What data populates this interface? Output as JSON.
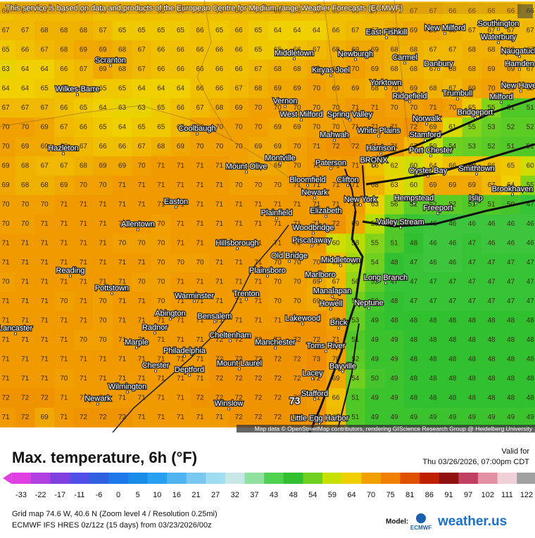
{
  "header_notice": "This service is based on data and products of the European Centre for Medium-range Weather Forecasts (ECMWF)",
  "cities": [
    "East Fishkill",
    "New Milford",
    "Southington",
    "Waterbury",
    "Scranton",
    "Middletown",
    "Newburgh",
    "Carmel",
    "Danbury",
    "Naugatuck",
    "Hamden",
    "Kiryas Joel",
    "Wilkes-Barre",
    "Yorktown",
    "Trumbull",
    "New Haven",
    "Milford",
    "Ridgefield",
    "Vernon",
    "West Milford",
    "Spring Valley",
    "Bridgeport",
    "Norwalk",
    "Stamford",
    "White Plains",
    "Mahwah",
    "Coolbaugh",
    "Hazleton",
    "Harrison",
    "Port Chester",
    "Montville",
    "Paterson",
    "BRONX",
    "Mount Olive",
    "Oyster Bay",
    "Smithtown",
    "Bloomfield",
    "Clifton",
    "Brookhaven",
    "Newark",
    "Easton",
    "New York",
    "Hempstead",
    "Islip",
    "Freeport",
    "Plainfield",
    "Elizabeth",
    "Allentown",
    "Woodbridge",
    "Valley Stream",
    "Piscataway",
    "Hillsborough",
    "Old Bridge",
    "Middletown",
    "Reading",
    "Plainsboro",
    "Marlboro",
    "Long Branch",
    "Pottstown",
    "Manalapan",
    "Trenton",
    "Warminster",
    "Neptune",
    "Howell",
    "Abington",
    "Bensalem",
    "Lakewood",
    "Brick",
    "Lancaster",
    "Radnor",
    "Cheltenham",
    "Marple",
    "Manchester",
    "Toms River",
    "Philadelphia",
    "Mount Laurel",
    "Bayville",
    "Chester",
    "Deptford",
    "Lacey",
    "Wilmington",
    "Stafford",
    "Newark",
    "Winslow",
    "Little Egg Harbor"
  ],
  "max_marker": "73",
  "attribution": "Map data © OpenStreetMap contributors, rendering GIScience Research Group @ Heidelberg University",
  "title": "Max. temperature, 6h (°F)",
  "valid_label": "Valid for",
  "valid_time": "Thu 03/26/2026, 07:00pm CDT",
  "legend": {
    "ticks": [
      -33,
      -22,
      -17,
      -11,
      -6,
      0,
      5,
      10,
      16,
      21,
      27,
      32,
      37,
      43,
      48,
      54,
      59,
      64,
      70,
      75,
      81,
      86,
      91,
      97,
      102,
      111,
      122
    ],
    "colors": [
      "#e040e0",
      "#b040e0",
      "#8040e0",
      "#5050e8",
      "#3060e0",
      "#1e78e8",
      "#1a8ce8",
      "#28a0f0",
      "#50b4f0",
      "#78c8f0",
      "#a0dcf0",
      "#c8e8e8",
      "#90e0a0",
      "#50d050",
      "#30c030",
      "#70d020",
      "#c8e000",
      "#f0d000",
      "#f0a000",
      "#f08000",
      "#e05000",
      "#c02000",
      "#901010",
      "#c04060",
      "#e090a0",
      "#f0d0d8",
      "#a0a0a0"
    ]
  },
  "grid_info": "Grid map 74.6 W, 40.6 N (Zoom level 4 / Resolution 0.25mi)",
  "model_run": "ECMWF IFS HRES 0z/12z (15 days) from  03/23/2026/00z",
  "model_label": "Model:",
  "model_logo": "ECMWF",
  "brand": "weather.us",
  "grid": [
    [
      66,
      67,
      67,
      67,
      67,
      66,
      66,
      66,
      66,
      66,
      66,
      66,
      66,
      66,
      66,
      66,
      66,
      66,
      66,
      67,
      67,
      67,
      67,
      66,
      66,
      66,
      66,
      66
    ],
    [
      67,
      67,
      68,
      68,
      68,
      67,
      65,
      65,
      65,
      65,
      66,
      65,
      66,
      65,
      64,
      64,
      64,
      66,
      67,
      67,
      68,
      69,
      69,
      68,
      67,
      67,
      67,
      67
    ],
    [
      65,
      66,
      67,
      68,
      69,
      69,
      68,
      67,
      66,
      66,
      66,
      66,
      66,
      65,
      65,
      66,
      67,
      68,
      69,
      69,
      68,
      68,
      67,
      67,
      68,
      68,
      68,
      67
    ],
    [
      63,
      64,
      64,
      66,
      67,
      69,
      68,
      67,
      66,
      66,
      66,
      66,
      66,
      67,
      68,
      68,
      69,
      69,
      70,
      69,
      68,
      68,
      67,
      68,
      68,
      69,
      69,
      67
    ],
    [
      64,
      64,
      65,
      66,
      67,
      65,
      65,
      64,
      64,
      64,
      66,
      66,
      67,
      68,
      69,
      69,
      70,
      69,
      69,
      68,
      70,
      69,
      68,
      67,
      69,
      70,
      69,
      68
    ],
    [
      67,
      67,
      67,
      66,
      65,
      64,
      63,
      63,
      65,
      66,
      67,
      68,
      69,
      70,
      70,
      70,
      70,
      70,
      71,
      71,
      70,
      70,
      71,
      70,
      65,
      55,
      51,
      51
    ],
    [
      70,
      70,
      69,
      67,
      66,
      65,
      64,
      65,
      65,
      67,
      70,
      70,
      70,
      70,
      69,
      69,
      70,
      70,
      71,
      71,
      71,
      72,
      69,
      61,
      55,
      53,
      52,
      52
    ],
    [
      70,
      69,
      69,
      68,
      67,
      66,
      66,
      67,
      68,
      69,
      70,
      70,
      70,
      69,
      69,
      70,
      71,
      72,
      72,
      71,
      71,
      67,
      59,
      54,
      53,
      52,
      51,
      51
    ],
    [
      69,
      68,
      67,
      67,
      68,
      69,
      69,
      70,
      71,
      71,
      71,
      71,
      70,
      69,
      69,
      70,
      71,
      71,
      71,
      66,
      62,
      60,
      64,
      66,
      66,
      66,
      65,
      60
    ],
    [
      69,
      68,
      68,
      69,
      70,
      70,
      71,
      71,
      71,
      71,
      71,
      71,
      70,
      70,
      70,
      71,
      71,
      71,
      71,
      68,
      63,
      60,
      69,
      69,
      69,
      67,
      64,
      55
    ],
    [
      70,
      70,
      70,
      71,
      71,
      71,
      71,
      71,
      71,
      71,
      71,
      71,
      71,
      71,
      71,
      71,
      71,
      71,
      70,
      63,
      56,
      52,
      52,
      52,
      51,
      51,
      50,
      47
    ],
    [
      70,
      70,
      71,
      71,
      71,
      71,
      71,
      71,
      70,
      71,
      71,
      71,
      71,
      71,
      71,
      71,
      71,
      72,
      69,
      58,
      51,
      47,
      46,
      46,
      46,
      46,
      46,
      46
    ],
    [
      71,
      71,
      71,
      71,
      71,
      71,
      70,
      70,
      70,
      71,
      71,
      71,
      71,
      71,
      71,
      71,
      71,
      60,
      58,
      55,
      51,
      48,
      46,
      46,
      47,
      46,
      46,
      46
    ],
    [
      71,
      71,
      71,
      71,
      71,
      71,
      71,
      71,
      70,
      70,
      70,
      71,
      71,
      71,
      70,
      70,
      70,
      66,
      57,
      54,
      48,
      47,
      46,
      46,
      47,
      47,
      47,
      47
    ],
    [
      70,
      71,
      71,
      71,
      71,
      71,
      71,
      70,
      70,
      71,
      71,
      71,
      71,
      71,
      70,
      70,
      69,
      67,
      56,
      52,
      47,
      47,
      47,
      47,
      47,
      47,
      47,
      47
    ],
    [
      71,
      71,
      71,
      70,
      71,
      70,
      71,
      71,
      70,
      71,
      71,
      71,
      71,
      71,
      70,
      70,
      69,
      70,
      54,
      50,
      48,
      47,
      47,
      47,
      47,
      47,
      47,
      47
    ],
    [
      71,
      71,
      71,
      71,
      71,
      70,
      71,
      71,
      71,
      71,
      71,
      71,
      71,
      71,
      71,
      72,
      72,
      70,
      53,
      49,
      48,
      48,
      48,
      48,
      48,
      48,
      48,
      48
    ],
    [
      71,
      71,
      71,
      71,
      70,
      70,
      71,
      71,
      71,
      71,
      71,
      72,
      72,
      72,
      72,
      72,
      72,
      71,
      51,
      49,
      49,
      48,
      48,
      48,
      48,
      48,
      48,
      48
    ],
    [
      71,
      71,
      71,
      71,
      71,
      71,
      71,
      71,
      71,
      71,
      71,
      72,
      72,
      72,
      72,
      72,
      73,
      70,
      52,
      49,
      49,
      48,
      48,
      48,
      48,
      48,
      48,
      48
    ],
    [
      71,
      71,
      71,
      70,
      71,
      71,
      71,
      71,
      71,
      71,
      71,
      72,
      72,
      72,
      72,
      72,
      72,
      69,
      54,
      50,
      49,
      48,
      48,
      48,
      48,
      48,
      48,
      48
    ],
    [
      72,
      72,
      72,
      71,
      71,
      71,
      71,
      71,
      71,
      71,
      72,
      72,
      72,
      72,
      72,
      72,
      71,
      66,
      51,
      49,
      49,
      48,
      48,
      48,
      48,
      48,
      48,
      48
    ],
    [
      71,
      72,
      69,
      71,
      72,
      72,
      72,
      71,
      71,
      71,
      71,
      71,
      72,
      72,
      72,
      72,
      72,
      67,
      51,
      49,
      49,
      49,
      49,
      49,
      49,
      49,
      49,
      49
    ]
  ]
}
